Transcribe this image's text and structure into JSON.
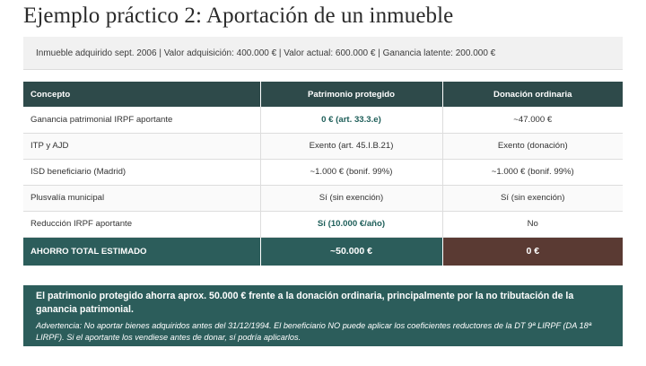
{
  "title": "Ejemplo práctico 2: Aportación de un inmueble",
  "info": "Inmueble adquirido sept. 2006 | Valor adquisición: 400.000 € | Valor actual: 600.000 € | Ganancia latente: 200.000 €",
  "table": {
    "headers": [
      "Concepto",
      "Patrimonio protegido",
      "Donación ordinaria"
    ],
    "rows": [
      [
        "Ganancia patrimonial IRPF aportante",
        "0 € (art. 33.3.e)",
        "~47.000 €"
      ],
      [
        "ITP y AJD",
        "Exento (art. 45.I.B.21)",
        "Exento (donación)"
      ],
      [
        "ISD beneficiario (Madrid)",
        "~1.000 € (bonif. 99%)",
        "~1.000 € (bonif. 99%)"
      ],
      [
        "Plusvalía municipal",
        "Sí (sin exención)",
        "Sí (sin exención)"
      ],
      [
        "Reducción IRPF aportante",
        "Sí (10.000 €/año)",
        "No"
      ]
    ],
    "total": [
      "AHORRO TOTAL ESTIMADO",
      "~50.000 €",
      "0 €"
    ]
  },
  "summary": {
    "main": "El patrimonio protegido ahorra aprox. 50.000 € frente a la donación ordinaria, principalmente por la no tributación de la ganancia patrimonial.",
    "warning_label": "Advertencia:",
    "warning": "No aportar bienes adquiridos antes del 31/12/1994. El beneficiario NO puede aplicar los coeficientes reductores de la DT 9ª LIRPF (DA 18ª LIRPF). Si el aportante los vendiese antes de donar, sí podría aplicarlos."
  },
  "colors": {
    "header_bg": "#2e4a4a",
    "accent_teal": "#2c5d5b",
    "accent_brown": "#5a3a33",
    "highlight_text": "#1f5f5a"
  }
}
